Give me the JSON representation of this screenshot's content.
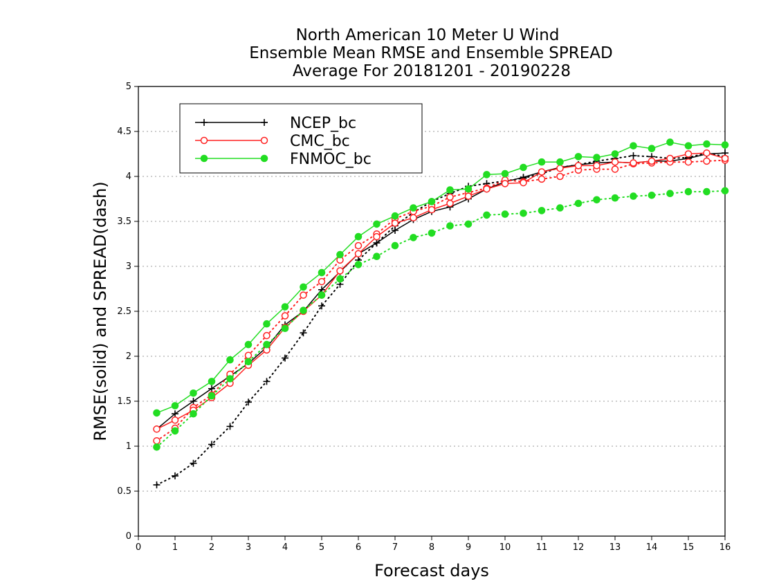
{
  "chart_data": {
    "type": "line",
    "title": [
      "North American 10 Meter U Wind",
      "Ensemble Mean RMSE and Ensemble SPREAD",
      "Average For 20181201 - 20190228"
    ],
    "xlabel": "Forecast days",
    "ylabel": "RMSE(solid) and SPREAD(dash)",
    "xlim": [
      0,
      16
    ],
    "ylim": [
      0,
      5
    ],
    "xticks": [
      0,
      1,
      2,
      3,
      4,
      5,
      6,
      7,
      8,
      9,
      10,
      11,
      12,
      13,
      14,
      15,
      16
    ],
    "yticks": [
      0,
      0.5,
      1,
      1.5,
      2,
      2.5,
      3,
      3.5,
      4,
      4.5,
      5
    ],
    "ytick_labels": [
      "0",
      "0.5",
      "1",
      "1.5",
      "2",
      "2.5",
      "3",
      "3.5",
      "4",
      "4.5",
      "5"
    ],
    "grid": "horizontal dotted",
    "legend_position": "top-left",
    "x": [
      0.5,
      1,
      1.5,
      2,
      2.5,
      3,
      3.5,
      4,
      4.5,
      5,
      5.5,
      6,
      6.5,
      7,
      7.5,
      8,
      8.5,
      9,
      9.5,
      10,
      10.5,
      11,
      11.5,
      12,
      12.5,
      13,
      13.5,
      14,
      14.5,
      15,
      15.5,
      16
    ],
    "series": [
      {
        "name": "NCEP_bc",
        "color": "#000000",
        "marker": "plus",
        "rmse": [
          1.19,
          1.36,
          1.5,
          1.64,
          1.78,
          1.92,
          2.1,
          2.35,
          2.5,
          2.74,
          2.94,
          3.14,
          3.26,
          3.4,
          3.52,
          3.61,
          3.66,
          3.75,
          3.86,
          3.94,
          3.99,
          4.05,
          4.1,
          4.13,
          4.15,
          4.16,
          4.15,
          4.17,
          4.17,
          4.2,
          4.25,
          4.26
        ],
        "spread": [
          0.57,
          0.67,
          0.81,
          1.02,
          1.22,
          1.49,
          1.72,
          1.98,
          2.26,
          2.56,
          2.8,
          3.07,
          3.26,
          3.45,
          3.6,
          3.72,
          3.81,
          3.89,
          3.92,
          3.95,
          3.98,
          4.03,
          4.1,
          4.13,
          4.17,
          4.2,
          4.23,
          4.22,
          4.2,
          4.21,
          4.26,
          4.22
        ]
      },
      {
        "name": "CMC_bc",
        "color": "#ff2020",
        "marker": "open-circle",
        "rmse": [
          1.19,
          1.29,
          1.4,
          1.54,
          1.7,
          1.9,
          2.07,
          2.32,
          2.5,
          2.68,
          2.95,
          3.14,
          3.33,
          3.48,
          3.54,
          3.63,
          3.7,
          3.78,
          3.86,
          3.92,
          3.93,
          4.05,
          4.09,
          4.12,
          4.12,
          4.16,
          4.15,
          4.17,
          4.2,
          4.25,
          4.26,
          4.2
        ],
        "spread": [
          1.06,
          1.2,
          1.43,
          1.57,
          1.8,
          2.01,
          2.23,
          2.45,
          2.68,
          2.83,
          3.07,
          3.23,
          3.36,
          3.53,
          3.61,
          3.67,
          3.77,
          3.82,
          3.87,
          3.96,
          3.94,
          3.97,
          4.0,
          4.07,
          4.08,
          4.08,
          4.14,
          4.15,
          4.16,
          4.16,
          4.17,
          4.18
        ]
      },
      {
        "name": "FNMOC_bc",
        "color": "#22dd22",
        "marker": "filled-circle",
        "rmse": [
          1.37,
          1.45,
          1.59,
          1.72,
          1.96,
          2.13,
          2.36,
          2.55,
          2.77,
          2.93,
          3.13,
          3.33,
          3.47,
          3.56,
          3.65,
          3.72,
          3.85,
          3.86,
          4.02,
          4.03,
          4.1,
          4.16,
          4.16,
          4.22,
          4.21,
          4.25,
          4.34,
          4.31,
          4.38,
          4.34,
          4.36,
          4.35
        ],
        "spread": [
          0.99,
          1.17,
          1.36,
          1.56,
          1.75,
          1.94,
          2.13,
          2.31,
          2.51,
          2.68,
          2.86,
          3.02,
          3.11,
          3.23,
          3.32,
          3.37,
          3.45,
          3.47,
          3.57,
          3.58,
          3.59,
          3.62,
          3.65,
          3.7,
          3.74,
          3.76,
          3.78,
          3.79,
          3.81,
          3.83,
          3.83,
          3.84
        ]
      }
    ]
  }
}
